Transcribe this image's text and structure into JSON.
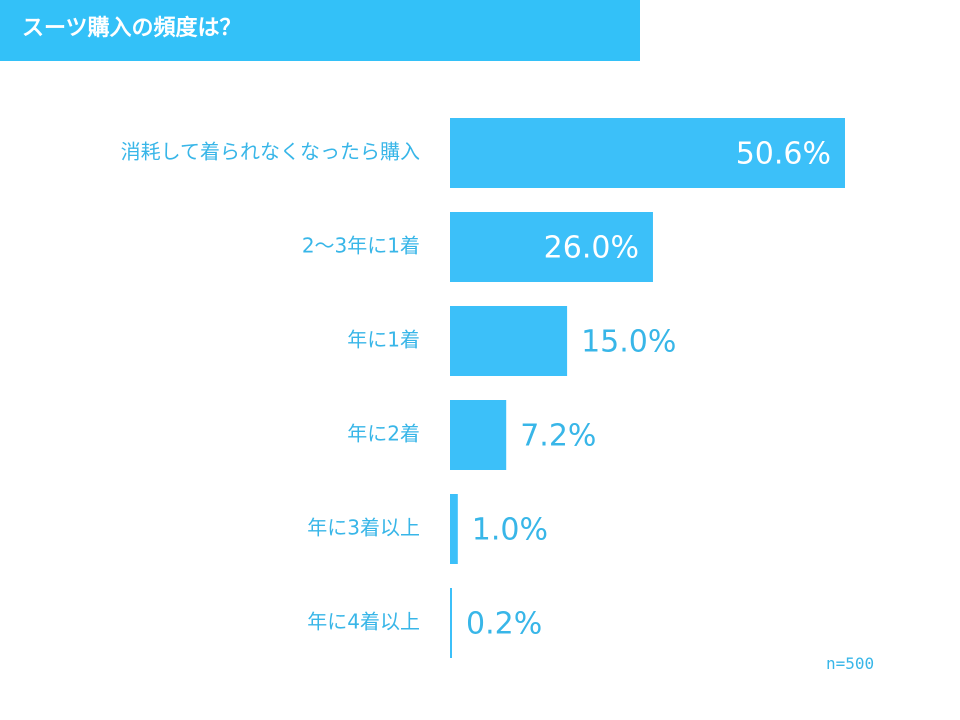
{
  "title": "スーツ購入の頻度は？",
  "note": "n=500",
  "colors": {
    "accent": "#33c1f8",
    "bar": "#3cc0f9",
    "label": "#38b6e8",
    "inside_label": "#ffffff"
  },
  "chart_data": {
    "type": "bar",
    "orientation": "horizontal",
    "categories": [
      "消耗して着られなくなったら購入",
      "2～3年に1着",
      "年に1着",
      "年に2着",
      "年に3着以上",
      "年に4着以上"
    ],
    "values": [
      50.6,
      26.0,
      15.0,
      7.2,
      1.0,
      0.2
    ],
    "value_labels": [
      "50.6%",
      "26.0%",
      "15.0%",
      "7.2%",
      "1.0%",
      "0.2%"
    ],
    "xlim": [
      0,
      50.6
    ],
    "grid": false,
    "legend": "none"
  }
}
